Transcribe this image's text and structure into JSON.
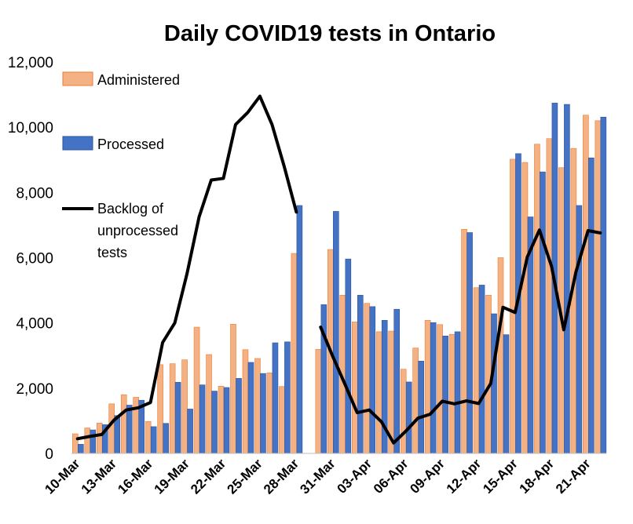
{
  "chart_data": {
    "type": "bar",
    "title": "Daily COVID19 tests in Ontario",
    "xlabel": "",
    "ylabel": "",
    "ylim": [
      0,
      12000
    ],
    "yticks": [
      0,
      2000,
      4000,
      6000,
      8000,
      10000,
      12000
    ],
    "ytick_labels": [
      "0",
      "2,000",
      "4,000",
      "6,000",
      "8,000",
      "10,000",
      "12,000"
    ],
    "grid": false,
    "legend_position": "top-left",
    "categories": [
      "10-Mar",
      "11-Mar",
      "12-Mar",
      "13-Mar",
      "14-Mar",
      "15-Mar",
      "16-Mar",
      "17-Mar",
      "18-Mar",
      "19-Mar",
      "20-Mar",
      "21-Mar",
      "22-Mar",
      "23-Mar",
      "24-Mar",
      "25-Mar",
      "26-Mar",
      "27-Mar",
      "28-Mar",
      "29-Mar",
      "30-Mar",
      "31-Mar",
      "01-Apr",
      "02-Apr",
      "03-Apr",
      "04-Apr",
      "05-Apr",
      "06-Apr",
      "07-Apr",
      "08-Apr",
      "09-Apr",
      "10-Apr",
      "11-Apr",
      "12-Apr",
      "13-Apr",
      "14-Apr",
      "15-Apr",
      "16-Apr",
      "17-Apr",
      "18-Apr",
      "19-Apr",
      "20-Apr",
      "21-Apr",
      "22-Apr"
    ],
    "x_tick_labels": [
      "10-Mar",
      "13-Mar",
      "16-Mar",
      "19-Mar",
      "22-Mar",
      "25-Mar",
      "28-Mar",
      "31-Mar",
      "03-Apr",
      "06-Apr",
      "09-Apr",
      "12-Apr",
      "15-Apr",
      "18-Apr",
      "21-Apr"
    ],
    "series": [
      {
        "name": "Administered",
        "kind": "bar",
        "fill": "#f4b183",
        "stroke": "#ed7d31",
        "values": [
          600,
          780,
          930,
          1520,
          1800,
          1720,
          980,
          2720,
          2750,
          2870,
          3870,
          3030,
          2060,
          3960,
          3180,
          2910,
          2470,
          2050,
          6130,
          null,
          3190,
          6250,
          4850,
          4030,
          4600,
          3730,
          3750,
          2580,
          3230,
          4080,
          3950,
          3650,
          6870,
          5080,
          4850,
          6000,
          9020,
          8920,
          9480,
          9650,
          8760,
          9350,
          10370,
          10200
        ]
      },
      {
        "name": "Processed",
        "kind": "bar",
        "fill": "#4472c4",
        "stroke": "#2f5597",
        "values": [
          280,
          720,
          880,
          1160,
          1480,
          1630,
          820,
          920,
          2180,
          1360,
          2100,
          1910,
          2020,
          2300,
          2790,
          2450,
          3390,
          3420,
          7600,
          null,
          4560,
          7420,
          5960,
          4850,
          4500,
          4080,
          4420,
          2190,
          2830,
          4010,
          3600,
          3730,
          6770,
          5160,
          4280,
          3640,
          9190,
          7250,
          8630,
          10740,
          10700,
          7600,
          9060,
          10310
        ]
      },
      {
        "name": "Backlog of unprocessed tests",
        "kind": "line",
        "color": "#000000",
        "values": [
          450,
          520,
          580,
          1020,
          1330,
          1400,
          1560,
          3400,
          4000,
          5500,
          7250,
          8380,
          8430,
          10080,
          10450,
          10950,
          10080,
          8800,
          7400,
          null,
          3870,
          2970,
          2120,
          1250,
          1330,
          970,
          320,
          680,
          1080,
          1200,
          1600,
          1520,
          1610,
          1530,
          2150,
          4480,
          4320,
          6020,
          6850,
          5730,
          3790,
          5560,
          6830,
          6760
        ]
      }
    ]
  }
}
